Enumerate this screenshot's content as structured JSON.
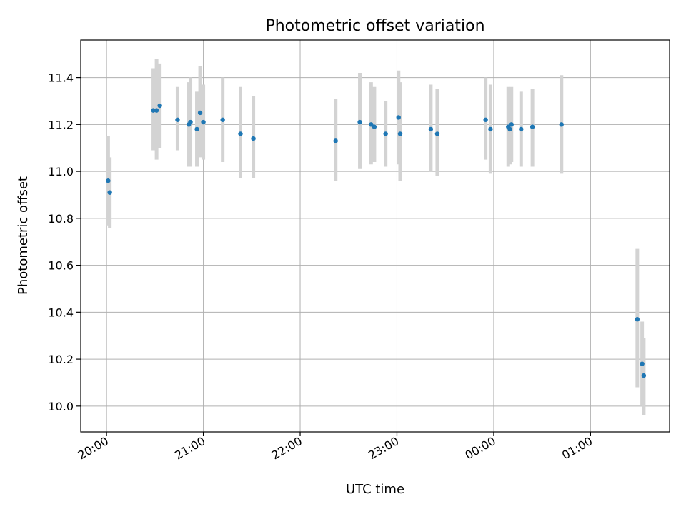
{
  "chart_data": {
    "type": "scatter",
    "title": "Photometric offset variation",
    "xlabel": "UTC time",
    "ylabel": "Photometric offset",
    "grid": true,
    "x_unit": "UTC time (HH:MM), crossing midnight",
    "xlim": [
      "19:44",
      "01:49"
    ],
    "ylim": [
      9.89,
      11.56
    ],
    "x_ticks": [
      "20:00",
      "21:00",
      "22:00",
      "23:00",
      "00:00",
      "01:00"
    ],
    "y_ticks": [
      "10.0",
      "10.2",
      "10.4",
      "10.6",
      "10.8",
      "11.0",
      "11.2",
      "11.4"
    ],
    "colors": {
      "points": "#1f77b4",
      "errorbars": "#d3d3d3",
      "grid": "#b0b0b0"
    },
    "series": [
      {
        "values": [
          {
            "x": "20:01",
            "y": 10.96,
            "err_low": 10.77,
            "err_high": 11.15
          },
          {
            "x": "20:02",
            "y": 10.91,
            "err_low": 10.76,
            "err_high": 11.06
          },
          {
            "x": "20:29",
            "y": 11.26,
            "err_low": 11.09,
            "err_high": 11.44
          },
          {
            "x": "20:31",
            "y": 11.26,
            "err_low": 11.05,
            "err_high": 11.48
          },
          {
            "x": "20:33",
            "y": 11.28,
            "err_low": 11.1,
            "err_high": 11.46
          },
          {
            "x": "20:44",
            "y": 11.22,
            "err_low": 11.09,
            "err_high": 11.36
          },
          {
            "x": "20:51",
            "y": 11.2,
            "err_low": 11.02,
            "err_high": 11.38
          },
          {
            "x": "20:52",
            "y": 11.21,
            "err_low": 11.02,
            "err_high": 11.4
          },
          {
            "x": "20:56",
            "y": 11.18,
            "err_low": 11.02,
            "err_high": 11.34
          },
          {
            "x": "20:58",
            "y": 11.25,
            "err_low": 11.06,
            "err_high": 11.45
          },
          {
            "x": "21:00",
            "y": 11.21,
            "err_low": 11.05,
            "err_high": 11.37
          },
          {
            "x": "21:12",
            "y": 11.22,
            "err_low": 11.04,
            "err_high": 11.4
          },
          {
            "x": "21:23",
            "y": 11.16,
            "err_low": 10.97,
            "err_high": 11.36
          },
          {
            "x": "21:31",
            "y": 11.14,
            "err_low": 10.97,
            "err_high": 11.32
          },
          {
            "x": "22:22",
            "y": 11.13,
            "err_low": 10.96,
            "err_high": 11.31
          },
          {
            "x": "22:37",
            "y": 11.21,
            "err_low": 11.01,
            "err_high": 11.42
          },
          {
            "x": "22:44",
            "y": 11.2,
            "err_low": 11.03,
            "err_high": 11.38
          },
          {
            "x": "22:46",
            "y": 11.19,
            "err_low": 11.04,
            "err_high": 11.36
          },
          {
            "x": "22:53",
            "y": 11.16,
            "err_low": 11.02,
            "err_high": 11.3
          },
          {
            "x": "23:01",
            "y": 11.23,
            "err_low": 11.03,
            "err_high": 11.43
          },
          {
            "x": "23:02",
            "y": 11.16,
            "err_low": 10.96,
            "err_high": 11.38
          },
          {
            "x": "23:21",
            "y": 11.18,
            "err_low": 11.0,
            "err_high": 11.37
          },
          {
            "x": "23:25",
            "y": 11.16,
            "err_low": 10.98,
            "err_high": 11.35
          },
          {
            "x": "23:55",
            "y": 11.22,
            "err_low": 11.05,
            "err_high": 11.4
          },
          {
            "x": "23:58",
            "y": 11.18,
            "err_low": 10.99,
            "err_high": 11.37
          },
          {
            "x": "00:09",
            "y": 11.19,
            "err_low": 11.02,
            "err_high": 11.36
          },
          {
            "x": "00:10",
            "y": 11.18,
            "err_low": 11.03,
            "err_high": 11.34
          },
          {
            "x": "00:11",
            "y": 11.2,
            "err_low": 11.04,
            "err_high": 11.36
          },
          {
            "x": "00:17",
            "y": 11.18,
            "err_low": 11.02,
            "err_high": 11.34
          },
          {
            "x": "00:24",
            "y": 11.19,
            "err_low": 11.02,
            "err_high": 11.35
          },
          {
            "x": "00:42",
            "y": 11.2,
            "err_low": 10.99,
            "err_high": 11.41
          },
          {
            "x": "01:29",
            "y": 10.37,
            "err_low": 10.08,
            "err_high": 10.67
          },
          {
            "x": "01:32",
            "y": 10.18,
            "err_low": 10.0,
            "err_high": 10.36
          },
          {
            "x": "01:33",
            "y": 10.13,
            "err_low": 9.96,
            "err_high": 10.29
          }
        ]
      }
    ]
  }
}
